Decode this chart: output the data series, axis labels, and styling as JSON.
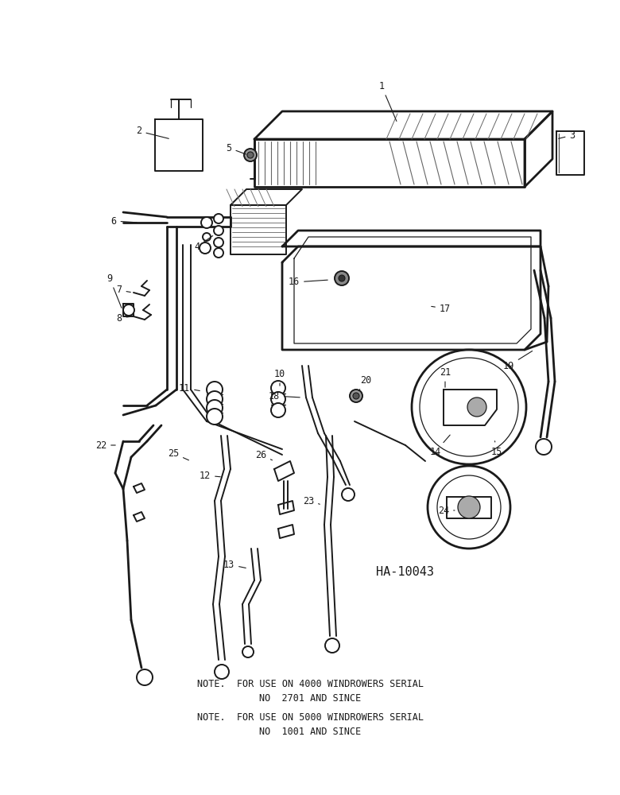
{
  "bg_color": "#ffffff",
  "fig_width": 7.8,
  "fig_height": 10.0,
  "note1_line1": "NOTE.  FOR USE ON 4000 WINDROWERS SERIAL",
  "note1_line2": "NO  2701 AND SINCE",
  "note2_line1": "NOTE.  FOR USE ON 5000 WINDROWERS SERIAL",
  "note2_line2": "NO  1001 AND SINCE",
  "diagram_id": "HA-10043",
  "text_color": "#1a1a1a",
  "line_color": "#1a1a1a",
  "lw_thick": 2.0,
  "lw_med": 1.4,
  "lw_thin": 0.9,
  "label_fs": 8.5,
  "note_fs": 8.5
}
